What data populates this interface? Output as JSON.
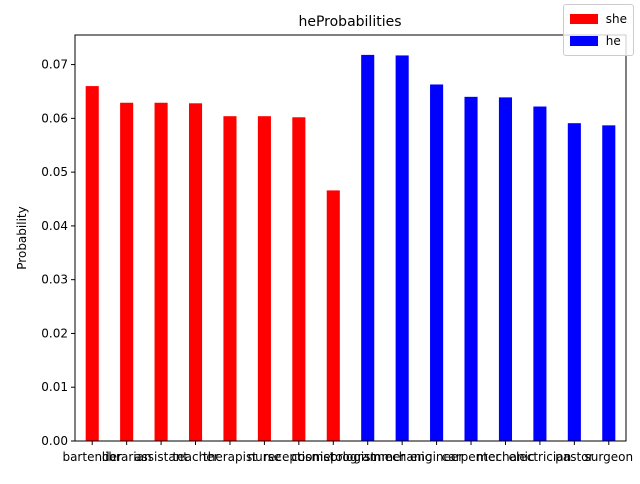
{
  "chart_data": {
    "type": "bar",
    "title": "heProbabilities",
    "xlabel": "",
    "ylabel": "Probability",
    "ylim": [
      0.0,
      0.0755
    ],
    "yticks": [
      "0.00",
      "0.01",
      "0.02",
      "0.03",
      "0.04",
      "0.05",
      "0.06",
      "0.07"
    ],
    "ytick_values": [
      0.0,
      0.01,
      0.02,
      0.03,
      0.04,
      0.05,
      0.06,
      0.07
    ],
    "categories": [
      "bartender",
      "librarian",
      "assistant",
      "teacher",
      "therapist",
      "nurse",
      "receptionist",
      "cosmetologist",
      "programmer",
      "mechanic",
      "engineer",
      "carpenter",
      "mechanic",
      "electrician",
      "pastor",
      "surgeon"
    ],
    "series": [
      {
        "name": "she",
        "color": "#ff0000",
        "values": [
          0.066,
          0.0629,
          0.0629,
          0.0628,
          0.0604,
          0.0604,
          0.0602,
          0.0466,
          null,
          null,
          null,
          null,
          null,
          null,
          null,
          null
        ]
      },
      {
        "name": "he",
        "color": "#0000ff",
        "values": [
          null,
          null,
          null,
          null,
          null,
          null,
          null,
          null,
          0.0718,
          0.0717,
          0.0663,
          0.064,
          0.0639,
          0.0622,
          0.0591,
          0.0587
        ]
      }
    ],
    "legend_position": "top-right",
    "grid": false
  }
}
